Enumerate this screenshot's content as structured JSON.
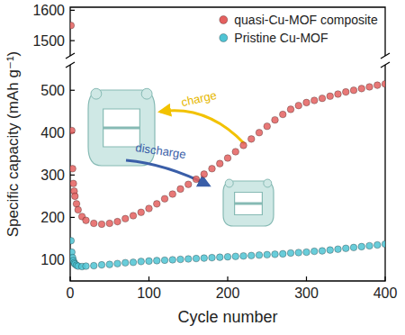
{
  "chart_data": [
    {
      "type": "scatter",
      "xlim": [
        0,
        400
      ],
      "ylim": [
        1450,
        1610
      ],
      "yticks": [
        1500,
        1600
      ],
      "tick_labels": "y",
      "series": [
        {
          "color": "#e4605f",
          "marker": "circle",
          "x": [
            1
          ],
          "values": [
            1550
          ]
        }
      ]
    },
    {
      "type": "scatter",
      "x_label": "Cycle number",
      "y_label": "Specific capacity (mAh g⁻¹)",
      "xlim": [
        0,
        400
      ],
      "xticks": [
        0,
        100,
        200,
        300,
        400
      ],
      "ylim": [
        50,
        560
      ],
      "yticks": [
        100,
        200,
        300,
        400,
        500
      ],
      "legend": "upper right",
      "annotations": [
        {
          "text": "charge"
        },
        {
          "text": "discharge"
        }
      ],
      "series": [
        {
          "name": "quasi-Cu-MOF composite",
          "color": "#e4605f",
          "marker": "circle",
          "x": [
            2,
            3,
            4,
            5,
            6,
            8,
            10,
            15,
            20,
            30,
            40,
            50,
            60,
            70,
            80,
            90,
            100,
            110,
            120,
            130,
            140,
            150,
            160,
            170,
            180,
            190,
            200,
            210,
            220,
            230,
            240,
            250,
            260,
            270,
            280,
            290,
            300,
            310,
            320,
            330,
            340,
            350,
            360,
            370,
            380,
            390,
            400
          ],
          "values": [
            405,
            315,
            280,
            262,
            250,
            232,
            218,
            202,
            193,
            186,
            184,
            186,
            190,
            197,
            204,
            212,
            221,
            232,
            244,
            255,
            267,
            278,
            290,
            302,
            315,
            327,
            340,
            355,
            370,
            385,
            400,
            415,
            430,
            443,
            455,
            464,
            471,
            476,
            481,
            486,
            491,
            496,
            500,
            504,
            508,
            512,
            515
          ]
        },
        {
          "name": "Pristine Cu-MOF",
          "color": "#4fc4d4",
          "marker": "circle",
          "x": [
            1,
            2,
            3,
            4,
            5,
            6,
            8,
            10,
            15,
            20,
            30,
            40,
            50,
            60,
            70,
            80,
            90,
            100,
            110,
            120,
            130,
            140,
            150,
            160,
            170,
            180,
            190,
            200,
            210,
            220,
            230,
            240,
            250,
            260,
            270,
            280,
            290,
            300,
            310,
            320,
            330,
            340,
            350,
            360,
            370,
            380,
            390,
            400
          ],
          "values": [
            145,
            118,
            105,
            98,
            93,
            90,
            87,
            85,
            84,
            85,
            86,
            88,
            89,
            91,
            93,
            94,
            96,
            97,
            98,
            99,
            100,
            101,
            102,
            103,
            104,
            105,
            106,
            107,
            108,
            109,
            110,
            111,
            112,
            113,
            114,
            116,
            117,
            118,
            120,
            121,
            123,
            125,
            127,
            129,
            131,
            133,
            135,
            137
          ]
        }
      ]
    }
  ]
}
